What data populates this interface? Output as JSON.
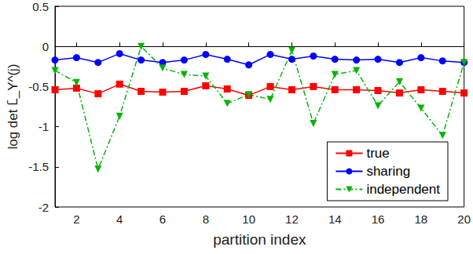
{
  "chart_data": {
    "type": "line",
    "xlabel": "partition index",
    "ylabel": "log det L̄_Y^(j)",
    "x": [
      1,
      2,
      3,
      4,
      5,
      6,
      7,
      8,
      9,
      10,
      11,
      12,
      13,
      14,
      15,
      16,
      17,
      18,
      19,
      20
    ],
    "xlim": [
      1,
      20
    ],
    "xticks": [
      2,
      4,
      6,
      8,
      10,
      12,
      14,
      16,
      18,
      20
    ],
    "ylim": [
      -2,
      0.5
    ],
    "yticks": [
      -2,
      -1.5,
      -1,
      -0.5,
      0,
      0.5
    ],
    "grid": false,
    "legend": "lower right",
    "series": [
      {
        "name": "true",
        "color": "#ff0000",
        "marker": "square",
        "line_style": "solid",
        "values": [
          -0.54,
          -0.52,
          -0.59,
          -0.47,
          -0.56,
          -0.57,
          -0.56,
          -0.49,
          -0.53,
          -0.61,
          -0.5,
          -0.54,
          -0.5,
          -0.54,
          -0.54,
          -0.55,
          -0.58,
          -0.54,
          -0.56,
          -0.58
        ]
      },
      {
        "name": "sharing",
        "color": "#0000ff",
        "marker": "circle",
        "line_style": "solid",
        "values": [
          -0.17,
          -0.14,
          -0.2,
          -0.09,
          -0.17,
          -0.2,
          -0.17,
          -0.1,
          -0.16,
          -0.23,
          -0.1,
          -0.16,
          -0.12,
          -0.16,
          -0.17,
          -0.16,
          -0.2,
          -0.14,
          -0.18,
          -0.2
        ]
      },
      {
        "name": "independent",
        "color": "#00b400",
        "marker": "triangle_down",
        "line_style": "dashdot",
        "values": [
          -0.3,
          -0.45,
          -1.53,
          -0.87,
          0.0,
          -0.27,
          -0.35,
          -0.37,
          -0.71,
          -0.6,
          -0.66,
          -0.05,
          -0.96,
          -0.35,
          -0.3,
          -0.74,
          -0.44,
          -0.77,
          -1.11,
          -0.2
        ]
      }
    ]
  }
}
